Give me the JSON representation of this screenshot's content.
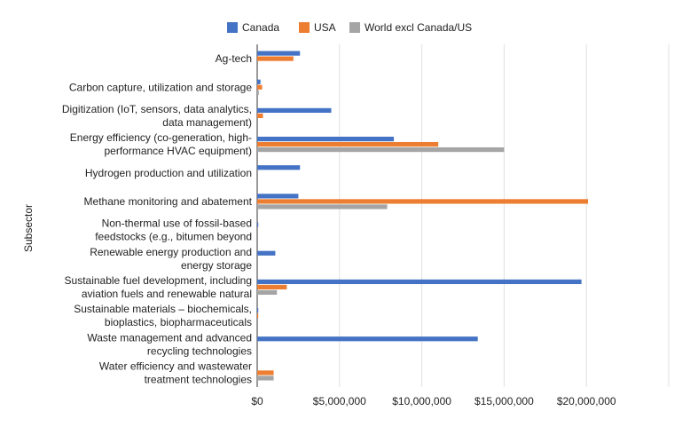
{
  "chart_data": {
    "type": "bar",
    "orientation": "horizontal",
    "ylabel": "Subsector",
    "xlim": [
      0,
      25000000
    ],
    "x_ticks": [
      0,
      5000000,
      10000000,
      15000000,
      20000000,
      25000000
    ],
    "x_tick_labels": [
      "$0",
      "$5,000,000",
      "$10,000,000",
      "$15,000,000",
      "$20,000,000",
      ""
    ],
    "grid": true,
    "legend_position": "top",
    "categories": [
      [
        "Ag-tech"
      ],
      [
        "Carbon capture, utilization and storage"
      ],
      [
        "Digitization (IoT, sensors, data analytics,",
        "data management)"
      ],
      [
        "Energy efficiency (co-generation, high-",
        "performance HVAC equipment)"
      ],
      [
        "Hydrogen production and utilization"
      ],
      [
        "Methane monitoring and abatement"
      ],
      [
        "Non-thermal use of fossil-based",
        "feedstocks (e.g., bitumen beyond"
      ],
      [
        "Renewable energy production and",
        "energy storage"
      ],
      [
        "Sustainable fuel development, including",
        "aviation fuels and renewable natural"
      ],
      [
        "Sustainable materials – biochemicals,",
        "bioplastics, biopharmaceuticals"
      ],
      [
        "Waste management and advanced",
        "recycling technologies"
      ],
      [
        "Water efficiency and wastewater",
        "treatment technologies"
      ]
    ],
    "series": [
      {
        "name": "Canada",
        "color": "#4472c4",
        "values": [
          2600000,
          200000,
          4500000,
          8300000,
          2600000,
          2500000,
          50000,
          1100000,
          19700000,
          50000,
          13400000,
          0
        ]
      },
      {
        "name": "USA",
        "color": "#ed7d31",
        "values": [
          2200000,
          300000,
          350000,
          11000000,
          0,
          20100000,
          0,
          0,
          1800000,
          50000,
          0,
          1000000
        ]
      },
      {
        "name": "World excl Canada/US",
        "color": "#a5a5a5",
        "values": [
          0,
          100000,
          0,
          15000000,
          0,
          7900000,
          0,
          0,
          1200000,
          0,
          0,
          1000000
        ]
      }
    ]
  }
}
